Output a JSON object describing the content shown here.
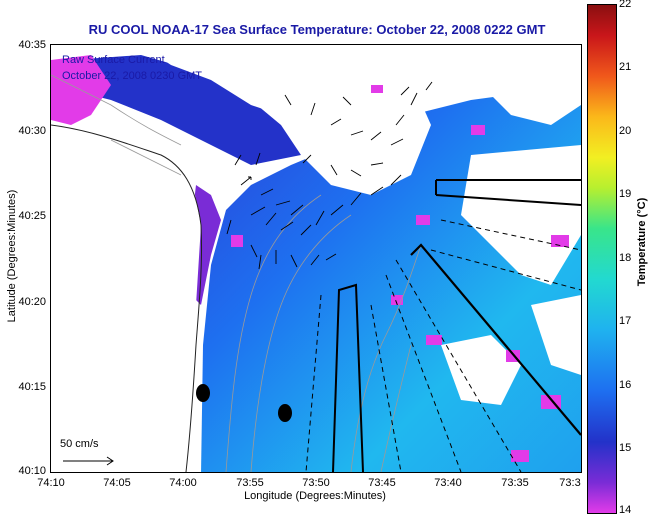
{
  "title": "RU COOL  NOAA-17  Sea Surface Temperature:  October 22, 2008 0222 GMT",
  "overlay": {
    "current_label": "Raw Surface Current",
    "current_time": "October 22, 2008 0230 GMT",
    "scale_label": "50 cm/s"
  },
  "axes": {
    "xlabel": "Longitude (Degrees:Minutes)",
    "ylabel": "Latitude (Degrees:Minutes)",
    "x_ticks": [
      "74:10",
      "74:05",
      "74:00",
      "73:55",
      "73:50",
      "73:45",
      "73:40",
      "73:35",
      "73:3"
    ],
    "y_ticks": [
      "40:35",
      "40:30",
      "40:25",
      "40:20",
      "40:15",
      "40:10"
    ]
  },
  "colorbar": {
    "title": "Temperature (°C)",
    "ticks": [
      "22",
      "21",
      "20",
      "19",
      "18",
      "17",
      "16",
      "15",
      "14"
    ],
    "min": 14,
    "max": 22
  },
  "colors": {
    "title_blue": "#1a1aa6",
    "warm_water": "#1fb2ef",
    "cool_water": "#2332c9",
    "coldest": "#e23be8",
    "land_cloud": "#ffffff"
  }
}
